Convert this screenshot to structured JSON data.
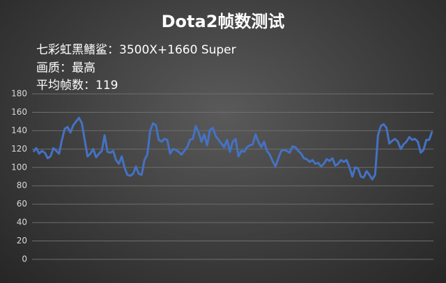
{
  "chart_data": {
    "type": "line",
    "title": "Dota2帧数测试",
    "annotations": [
      "七彩虹黑鳍鲨：3500X+1660 Super",
      "画质：最高",
      "平均帧数：119"
    ],
    "values": [
      117,
      121,
      115,
      118,
      116,
      110,
      112,
      121,
      118,
      115,
      130,
      142,
      144,
      138,
      146,
      150,
      154,
      148,
      130,
      112,
      115,
      120,
      111,
      115,
      118,
      135,
      117,
      116,
      118,
      108,
      104,
      112,
      100,
      92,
      91,
      93,
      101,
      93,
      92,
      108,
      114,
      140,
      148,
      146,
      130,
      128,
      131,
      130,
      115,
      120,
      119,
      117,
      114,
      118,
      122,
      130,
      131,
      145,
      138,
      128,
      136,
      124,
      141,
      143,
      134,
      130,
      126,
      122,
      130,
      117,
      128,
      131,
      112,
      118,
      117,
      122,
      124,
      125,
      136,
      128,
      122,
      128,
      118,
      114,
      107,
      101,
      110,
      118,
      119,
      118,
      116,
      123,
      122,
      118,
      115,
      110,
      109,
      106,
      108,
      104,
      105,
      101,
      104,
      109,
      107,
      110,
      102,
      104,
      108,
      106,
      108,
      100,
      90,
      100,
      99,
      90,
      89,
      96,
      92,
      87,
      92,
      135,
      145,
      147,
      143,
      126,
      129,
      131,
      128,
      120,
      125,
      128,
      133,
      130,
      131,
      128,
      116,
      119,
      130,
      130,
      139
    ],
    "color": "#4472c4",
    "ylim": [
      0,
      180
    ],
    "yticks": [
      0,
      20,
      40,
      60,
      80,
      100,
      120,
      140,
      160,
      180
    ],
    "grid": true
  }
}
